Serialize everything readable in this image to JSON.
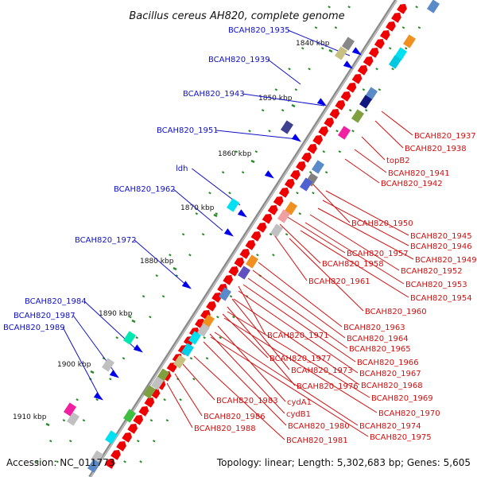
{
  "title": "Bacillus cereus AH820, complete genome",
  "footer": {
    "accession": "Accession: NC_011773",
    "topology": "Topology: linear; Length: 5,302,683 bp; Genes: 5,605"
  },
  "colors": {
    "backbone": "#7a7a7a",
    "forward_label": "#1010c8",
    "reverse_label": "#d01010",
    "gene_forward": "#0000ee",
    "gene_reverse": "#ee0000",
    "tick": "#2a8a2a"
  },
  "kbp_ticks": [
    "1840 kbp",
    "1850 kbp",
    "1860 kbp",
    "1870 kbp",
    "1880 kbp",
    "1890 kbp",
    "1900 kbp",
    "1910 kbp"
  ],
  "left_labels": [
    "BCAH820_1935",
    "BCAH820_1939",
    "BCAH820_1943",
    "BCAH820_1951",
    "ldh",
    "BCAH820_1962",
    "BCAH820_1972",
    "BCAH820_1984",
    "BCAH820_1987",
    "BCAH820_1989"
  ],
  "right_labels": [
    "BCAH820_1937",
    "BCAH820_1938",
    "topB2",
    "BCAH820_1941",
    "BCAH820_1942",
    "BCAH820_1950",
    "BCAH820_1945",
    "BCAH820_1946",
    "BCAH820_1949",
    "BCAH820_1957",
    "BCAH820_1958",
    "BCAH820_1952",
    "BCAH820_1953",
    "BCAH820_1961",
    "BCAH820_1954",
    "BCAH820_1960",
    "BCAH820_1963",
    "BCAH820_1971",
    "BCAH820_1964",
    "BCAH820_1965",
    "BCAH820_1977",
    "BCAH820_1966",
    "BCAH820_1973",
    "BCAH820_1967",
    "BCAH820_1976",
    "BCAH820_1968",
    "BCAH820_1969",
    "BCAH820_1983",
    "cydA1",
    "BCAH820_1970",
    "cydB1",
    "BCAH820_1986",
    "BCAH820_1980",
    "BCAH820_1974",
    "BCAH820_1988",
    "BCAH820_1975",
    "BCAH820_1981"
  ]
}
